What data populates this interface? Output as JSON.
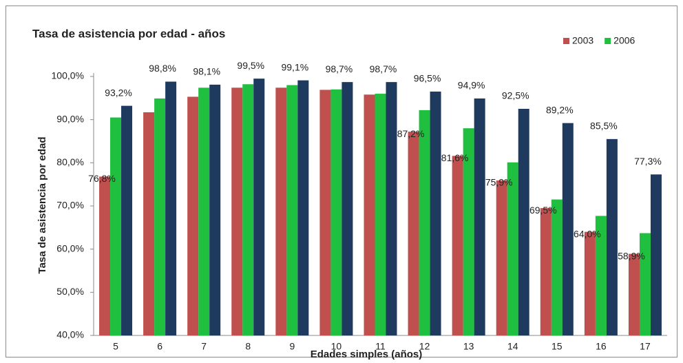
{
  "chart_data": {
    "type": "bar",
    "title": "Tasa de  asistencia  por edad  -  años",
    "x_label": "Edades simples (años)",
    "y_label": "Tasa de asistencia por edad",
    "categories": [
      "5",
      "6",
      "7",
      "8",
      "9",
      "10",
      "11",
      "12",
      "13",
      "14",
      "15",
      "16",
      "17"
    ],
    "series": [
      {
        "name": "2003",
        "color": "#c0504d",
        "values": [
          76.8,
          91.7,
          95.3,
          97.4,
          97.4,
          96.9,
          95.8,
          87.2,
          81.6,
          75.9,
          69.5,
          64.0,
          58.9
        ],
        "value_labels": [
          "76,8%",
          null,
          null,
          null,
          null,
          null,
          null,
          "87,2%",
          "81,6%",
          "75,9%",
          "69,5%",
          "64,0%",
          "58,9%"
        ]
      },
      {
        "name": "2006",
        "color": "#1fbf3f",
        "values": [
          90.5,
          94.9,
          97.4,
          98.2,
          98.0,
          97.0,
          96.0,
          92.2,
          88.0,
          80.1,
          71.5,
          67.7,
          63.7
        ]
      },
      {
        "color": "#1f3a5f",
        "values": [
          93.2,
          98.8,
          98.1,
          99.5,
          99.1,
          98.7,
          98.7,
          96.5,
          94.9,
          92.5,
          89.2,
          85.5,
          77.3
        ],
        "value_labels": [
          "93,2%",
          "98,8%",
          "98,1%",
          "99,5%",
          "99,1%",
          "98,7%",
          "98,7%",
          "96,5%",
          "94,9%",
          "92,5%",
          "89,2%",
          "85,5%",
          "77,3%"
        ]
      }
    ],
    "ylim": [
      40,
      100
    ],
    "yticks": [
      {
        "value": 40,
        "label": "40,0%"
      },
      {
        "value": 50,
        "label": "50,0%"
      },
      {
        "value": 60,
        "label": "60,0%"
      },
      {
        "value": 70,
        "label": "70,0%"
      },
      {
        "value": 80,
        "label": "80,0%"
      },
      {
        "value": 90,
        "label": "90,0%"
      },
      {
        "value": 100,
        "label": "100,0%"
      }
    ],
    "grid": false,
    "legend": "top-right"
  }
}
